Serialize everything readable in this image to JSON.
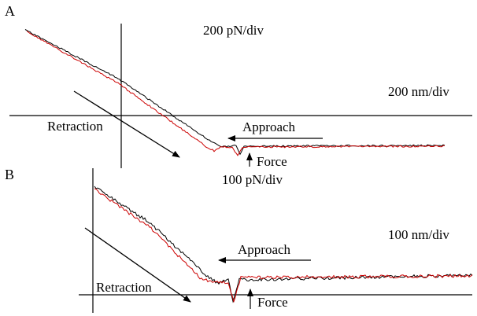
{
  "chart_data": [
    {
      "type": "line",
      "panel_label": "A",
      "title": "",
      "xlabel": "",
      "ylabel": "",
      "y_scale": "200 pN/div",
      "x_scale": "200 nm/div",
      "series": [
        {
          "color": "#000000"
        },
        {
          "color": "#cc0000"
        }
      ],
      "annotations": {
        "approach": "Approach",
        "retraction": "Retraction",
        "force": "Force"
      }
    },
    {
      "type": "line",
      "panel_label": "B",
      "title": "",
      "xlabel": "",
      "ylabel": "",
      "y_scale": "100 pN/div",
      "x_scale": "100 nm/div",
      "series": [
        {
          "color": "#000000"
        },
        {
          "color": "#cc0000"
        }
      ],
      "annotations": {
        "approach": "Approach",
        "retraction": "Retraction",
        "force": "Force"
      }
    }
  ]
}
